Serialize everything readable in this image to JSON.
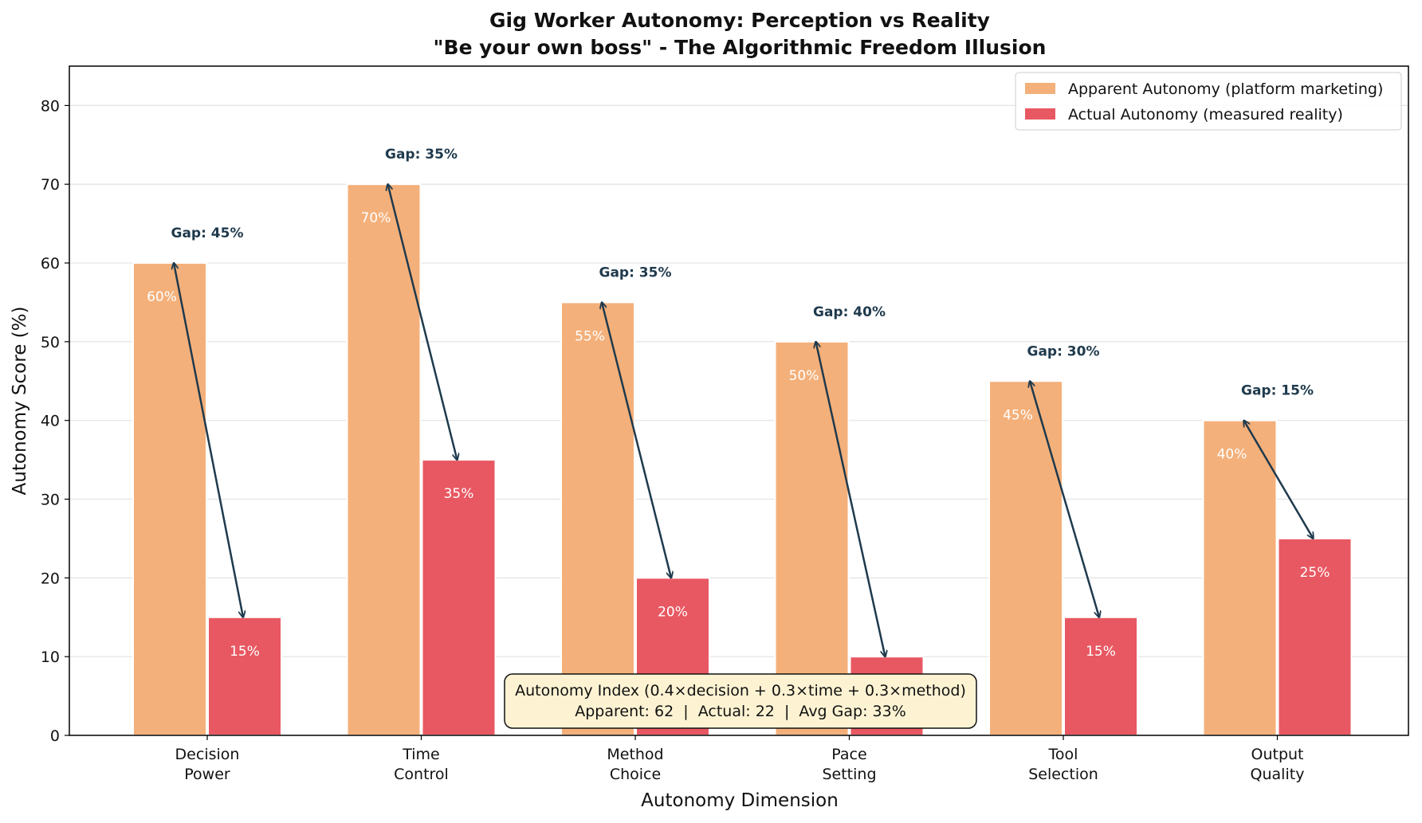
{
  "chart_data": {
    "type": "bar",
    "title": "Gig Worker Autonomy: Perception vs Reality",
    "subtitle": "\"Be your own boss\" - The Algorithmic Freedom Illusion",
    "xlabel": "Autonomy Dimension",
    "ylabel": "Autonomy Score (%)",
    "ylim": [
      0,
      85
    ],
    "yticks": [
      "0",
      "10",
      "20",
      "30",
      "40",
      "50",
      "60",
      "70",
      "80"
    ],
    "categories": [
      "Decision\nPower",
      "Time\nControl",
      "Method\nChoice",
      "Pace\nSetting",
      "Tool\nSelection",
      "Output\nQuality"
    ],
    "series": [
      {
        "name": "Apparent Autonomy (platform marketing)",
        "color": "#f4b07a",
        "values": [
          60,
          70,
          55,
          50,
          45,
          40
        ],
        "labels": [
          "60%",
          "70%",
          "55%",
          "50%",
          "45%",
          "40%"
        ]
      },
      {
        "name": "Actual Autonomy (measured reality)",
        "color": "#e85862",
        "values": [
          15,
          35,
          20,
          10,
          15,
          25
        ],
        "labels": [
          "15%",
          "35%",
          "20%",
          "10%",
          "15%",
          "25%"
        ]
      }
    ],
    "gap_labels": [
      "Gap: 45%",
      "Gap: 35%",
      "Gap: 35%",
      "Gap: 40%",
      "Gap: 30%",
      "Gap: 15%"
    ],
    "arrow_color": "#1f3a4d",
    "grid": true,
    "legend_position": "top-right",
    "annotation_box": {
      "line1": "Autonomy Index (0.4×decision + 0.3×time + 0.3×method)",
      "line2": "Apparent: 62  |  Actual: 22  |  Avg Gap: 33%",
      "background": "#fdf3d3"
    }
  }
}
